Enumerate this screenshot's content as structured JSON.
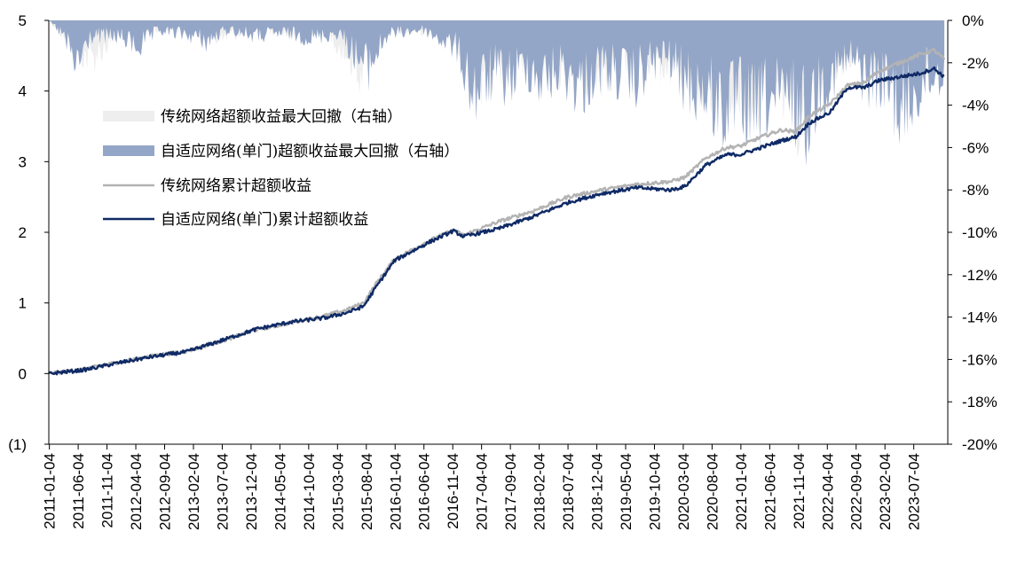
{
  "chart_data": {
    "type": "line+area",
    "title": "",
    "left_axis": {
      "ticks": [
        "5",
        "4",
        "3",
        "2",
        "1",
        "0",
        "(1)"
      ],
      "ylim": [
        -1,
        5
      ]
    },
    "right_axis": {
      "ticks": [
        "0%",
        "-2%",
        "-4%",
        "-6%",
        "-8%",
        "-10%",
        "-12%",
        "-14%",
        "-16%",
        "-18%",
        "-20%"
      ],
      "ylim": [
        -20,
        0
      ]
    },
    "x_ticks": [
      "2011-01-04",
      "2011-06-04",
      "2011-11-04",
      "2012-04-04",
      "2012-09-04",
      "2013-02-04",
      "2013-07-04",
      "2013-12-04",
      "2014-05-04",
      "2014-10-04",
      "2015-03-04",
      "2015-08-04",
      "2016-01-04",
      "2016-06-04",
      "2016-11-04",
      "2017-04-04",
      "2017-09-04",
      "2018-02-04",
      "2018-07-04",
      "2018-12-04",
      "2019-05-04",
      "2019-10-04",
      "2020-03-04",
      "2020-08-04",
      "2021-01-04",
      "2021-06-04",
      "2021-11-04",
      "2022-04-04",
      "2022-09-04",
      "2023-02-04",
      "2023-07-04"
    ],
    "x_range": [
      "2011-01-04",
      "2023-12-31"
    ],
    "legend": {
      "placement": "upper-left",
      "entries": [
        {
          "label": "传统网络超额收益最大回撤（右轴）",
          "kind": "area",
          "color": "#eeeeee"
        },
        {
          "label": "自适应网络(单门)超额收益最大回撤（右轴）",
          "kind": "area",
          "color": "#94a6c7"
        },
        {
          "label": "传统网络累计超额收益",
          "kind": "line",
          "color": "#b3b3b3"
        },
        {
          "label": "自适应网络(单门)累计超额收益",
          "kind": "line",
          "color": "#0f2a66"
        }
      ]
    },
    "series_lines": [
      {
        "name": "传统网络累计超额收益",
        "color": "#b3b3b3",
        "points": [
          [
            2011.0,
            0.0
          ],
          [
            2011.5,
            0.06
          ],
          [
            2012.0,
            0.16
          ],
          [
            2012.5,
            0.25
          ],
          [
            2013.0,
            0.32
          ],
          [
            2013.5,
            0.46
          ],
          [
            2014.0,
            0.62
          ],
          [
            2014.5,
            0.72
          ],
          [
            2015.0,
            0.82
          ],
          [
            2015.3,
            0.9
          ],
          [
            2015.55,
            1.0
          ],
          [
            2015.75,
            1.3
          ],
          [
            2016.0,
            1.62
          ],
          [
            2016.5,
            1.88
          ],
          [
            2016.85,
            2.03
          ],
          [
            2017.0,
            1.96
          ],
          [
            2017.5,
            2.15
          ],
          [
            2018.0,
            2.3
          ],
          [
            2018.5,
            2.5
          ],
          [
            2019.0,
            2.6
          ],
          [
            2019.5,
            2.68
          ],
          [
            2020.0,
            2.72
          ],
          [
            2020.2,
            2.78
          ],
          [
            2020.5,
            3.05
          ],
          [
            2020.8,
            3.2
          ],
          [
            2021.0,
            3.22
          ],
          [
            2021.3,
            3.35
          ],
          [
            2021.6,
            3.45
          ],
          [
            2021.8,
            3.42
          ],
          [
            2022.0,
            3.65
          ],
          [
            2022.3,
            3.82
          ],
          [
            2022.55,
            4.08
          ],
          [
            2022.8,
            4.12
          ],
          [
            2023.0,
            4.28
          ],
          [
            2023.3,
            4.4
          ],
          [
            2023.6,
            4.52
          ],
          [
            2023.8,
            4.58
          ],
          [
            2023.95,
            4.45
          ]
        ]
      },
      {
        "name": "自适应网络(单门)累计超额收益",
        "color": "#0f2a66",
        "points": [
          [
            2011.0,
            0.0
          ],
          [
            2011.5,
            0.05
          ],
          [
            2012.0,
            0.15
          ],
          [
            2012.5,
            0.24
          ],
          [
            2013.0,
            0.31
          ],
          [
            2013.5,
            0.47
          ],
          [
            2014.0,
            0.63
          ],
          [
            2014.5,
            0.73
          ],
          [
            2015.0,
            0.79
          ],
          [
            2015.3,
            0.86
          ],
          [
            2015.55,
            0.95
          ],
          [
            2015.75,
            1.25
          ],
          [
            2016.0,
            1.6
          ],
          [
            2016.5,
            1.86
          ],
          [
            2016.85,
            2.02
          ],
          [
            2017.0,
            1.94
          ],
          [
            2017.5,
            2.05
          ],
          [
            2018.0,
            2.22
          ],
          [
            2018.5,
            2.42
          ],
          [
            2019.0,
            2.55
          ],
          [
            2019.5,
            2.63
          ],
          [
            2020.0,
            2.6
          ],
          [
            2020.2,
            2.65
          ],
          [
            2020.5,
            2.95
          ],
          [
            2020.8,
            3.1
          ],
          [
            2021.0,
            3.1
          ],
          [
            2021.3,
            3.2
          ],
          [
            2021.6,
            3.3
          ],
          [
            2021.8,
            3.35
          ],
          [
            2022.0,
            3.55
          ],
          [
            2022.3,
            3.7
          ],
          [
            2022.55,
            4.05
          ],
          [
            2022.8,
            4.05
          ],
          [
            2023.0,
            4.15
          ],
          [
            2023.3,
            4.2
          ],
          [
            2023.6,
            4.25
          ],
          [
            2023.8,
            4.32
          ],
          [
            2023.95,
            4.2
          ]
        ]
      }
    ],
    "series_areas": [
      {
        "name": "传统网络超额收益最大回撤（右轴）",
        "color": "#eeeeee",
        "points": [
          [
            2011.0,
            0
          ],
          [
            2011.3,
            -1.2
          ],
          [
            2011.6,
            -2.2
          ],
          [
            2012.0,
            -0.8
          ],
          [
            2012.5,
            -0.5
          ],
          [
            2013.0,
            -0.6
          ],
          [
            2013.5,
            -1.0
          ],
          [
            2014.0,
            -0.4
          ],
          [
            2014.5,
            -0.8
          ],
          [
            2015.0,
            -0.5
          ],
          [
            2015.5,
            -2.8
          ],
          [
            2015.8,
            -0.6
          ],
          [
            2016.5,
            -0.6
          ],
          [
            2016.9,
            -1.0
          ],
          [
            2017.1,
            -3.5
          ],
          [
            2017.4,
            -3.0
          ],
          [
            2017.8,
            -2.2
          ],
          [
            2018.1,
            -2.5
          ],
          [
            2018.5,
            -2.8
          ],
          [
            2018.8,
            -3.2
          ],
          [
            2019.2,
            -2.5
          ],
          [
            2019.6,
            -2.0
          ],
          [
            2020.0,
            -2.6
          ],
          [
            2020.4,
            -3.5
          ],
          [
            2020.8,
            -3.8
          ],
          [
            2021.1,
            -4.2
          ],
          [
            2021.4,
            -3.9
          ],
          [
            2021.7,
            -3.8
          ],
          [
            2021.85,
            -5.3
          ],
          [
            2022.0,
            -3.6
          ],
          [
            2022.3,
            -2.5
          ],
          [
            2022.6,
            -1.8
          ],
          [
            2023.0,
            -2.6
          ],
          [
            2023.3,
            -2.2
          ],
          [
            2023.6,
            -1.8
          ],
          [
            2023.95,
            -2.0
          ]
        ]
      },
      {
        "name": "自适应网络(单门)超额收益最大回撤（右轴）",
        "color": "#94a6c7",
        "points": [
          [
            2011.0,
            0
          ],
          [
            2011.2,
            -0.8
          ],
          [
            2011.4,
            -2.7
          ],
          [
            2011.6,
            -0.9
          ],
          [
            2012.0,
            -0.9
          ],
          [
            2012.3,
            -1.5
          ],
          [
            2012.6,
            -0.6
          ],
          [
            2013.0,
            -0.8
          ],
          [
            2013.3,
            -1.2
          ],
          [
            2013.6,
            -0.5
          ],
          [
            2014.0,
            -0.9
          ],
          [
            2014.4,
            -0.7
          ],
          [
            2014.8,
            -1.0
          ],
          [
            2015.2,
            -0.7
          ],
          [
            2015.6,
            -2.8
          ],
          [
            2015.9,
            -0.8
          ],
          [
            2016.4,
            -0.5
          ],
          [
            2016.9,
            -1.6
          ],
          [
            2017.15,
            -4.2
          ],
          [
            2017.4,
            -3.1
          ],
          [
            2017.7,
            -3.3
          ],
          [
            2017.9,
            -2.5
          ],
          [
            2018.15,
            -3.5
          ],
          [
            2018.4,
            -2.7
          ],
          [
            2018.7,
            -3.8
          ],
          [
            2018.95,
            -2.7
          ],
          [
            2019.2,
            -2.9
          ],
          [
            2019.45,
            -3.6
          ],
          [
            2019.7,
            -2.4
          ],
          [
            2019.95,
            -2.0
          ],
          [
            2020.2,
            -3.5
          ],
          [
            2020.5,
            -4.1
          ],
          [
            2020.8,
            -5.1
          ],
          [
            2021.0,
            -4.5
          ],
          [
            2021.2,
            -5.6
          ],
          [
            2021.4,
            -4.3
          ],
          [
            2021.55,
            -4.8
          ],
          [
            2021.75,
            -4.4
          ],
          [
            2021.95,
            -5.6
          ],
          [
            2022.15,
            -3.7
          ],
          [
            2022.4,
            -2.9
          ],
          [
            2022.6,
            -2.1
          ],
          [
            2022.8,
            -3.2
          ],
          [
            2023.0,
            -3.4
          ],
          [
            2023.2,
            -4.0
          ],
          [
            2023.35,
            -5.5
          ],
          [
            2023.5,
            -4.2
          ],
          [
            2023.7,
            -3.3
          ],
          [
            2023.95,
            -2.8
          ]
        ]
      }
    ]
  }
}
